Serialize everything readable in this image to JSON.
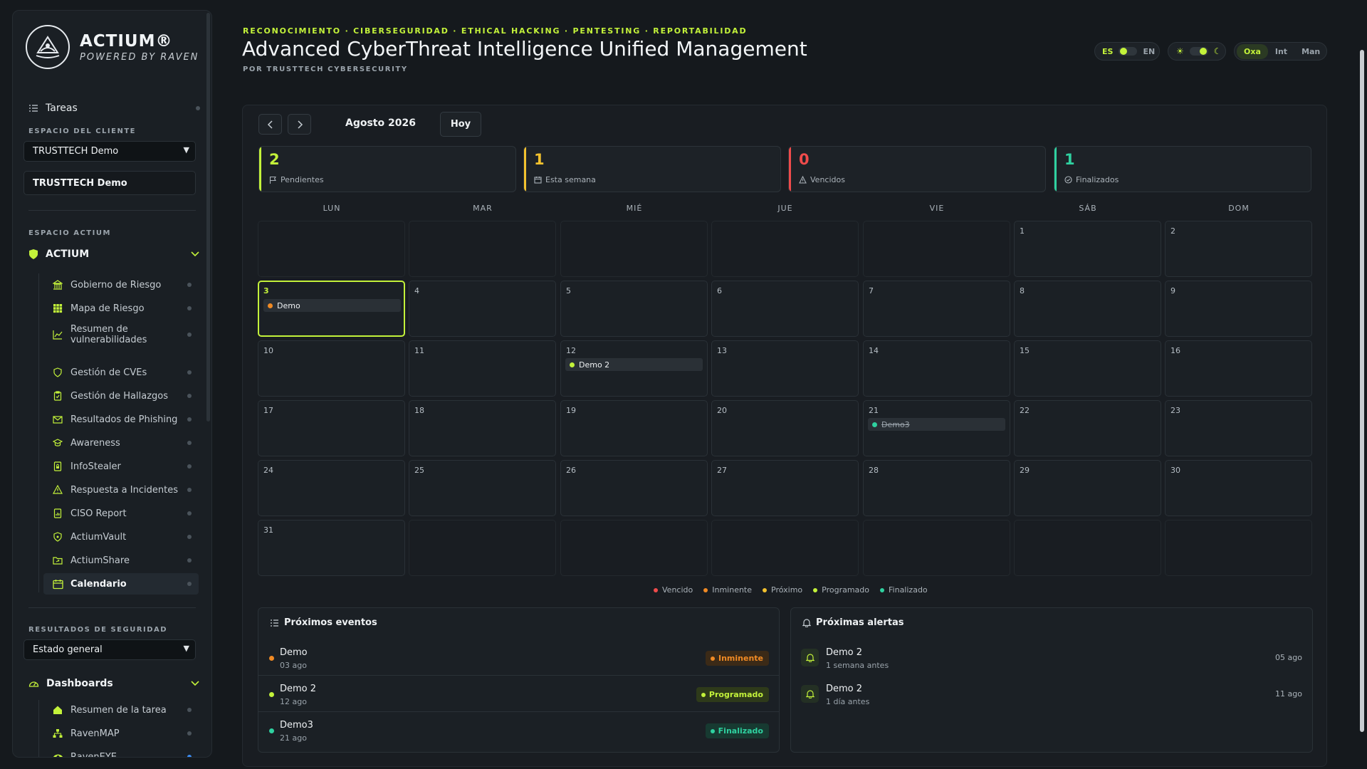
{
  "brand": {
    "name": "ACTIUM®",
    "tagline": "POWERED BY RAVEN"
  },
  "sidebar": {
    "tasks_label": "Tareas",
    "client_section": "ESPACIO DEL CLIENTE",
    "client_select": "TRUSTTECH Demo",
    "client_name": "TRUSTTECH Demo",
    "actium_section": "ESPACIO ACTIUM",
    "actium_group": "ACTIUM",
    "items": [
      {
        "label": "Gobierno de Riesgo",
        "icon": "bank-icon"
      },
      {
        "label": "Mapa de Riesgo",
        "icon": "grid-icon"
      },
      {
        "label": "Resumen de vulnerabilidades",
        "icon": "chart-line-icon"
      },
      {
        "label": "Gestión de CVEs",
        "icon": "shield-icon"
      },
      {
        "label": "Gestión de Hallazgos",
        "icon": "clipboard-icon"
      },
      {
        "label": "Resultados de Phishing",
        "icon": "mail-icon"
      },
      {
        "label": "Awareness",
        "icon": "graduation-cap-icon"
      },
      {
        "label": "InfoStealer",
        "icon": "file-lock-icon"
      },
      {
        "label": "Respuesta a Incidentes",
        "icon": "warning-icon"
      },
      {
        "label": "CISO Report",
        "icon": "report-icon"
      },
      {
        "label": "ActiumVault",
        "icon": "vault-shield-icon"
      },
      {
        "label": "ActiumShare",
        "icon": "folder-share-icon"
      },
      {
        "label": "Calendario",
        "icon": "calendar-icon"
      }
    ],
    "security_section": "RESULTADOS DE SEGURIDAD",
    "security_select": "Estado general",
    "dashboards_group": "Dashboards",
    "dash_items": [
      {
        "label": "Resumen de la tarea",
        "icon": "home-icon"
      },
      {
        "label": "RavenMAP",
        "icon": "sitemap-icon"
      },
      {
        "label": "RavenEYE",
        "icon": "eye-icon"
      }
    ]
  },
  "header": {
    "tags": "RECONOCIMIENTO · CIBERSEGURIDAD · ETHICAL HACKING · PENTESTING · REPORTABILIDAD",
    "title": "Advanced CyberThreat Intelligence Unified Management",
    "subtitle": "POR TRUSTTECH CYBERSECURITY",
    "lang_es": "ES",
    "lang_en": "EN",
    "theme_sun": "☀",
    "theme_moon": "☾",
    "modes": [
      "Oxa",
      "Int",
      "Man"
    ],
    "active_mode": "Oxa"
  },
  "calendar": {
    "month": "Agosto 2026",
    "today_btn": "Hoy",
    "stats": [
      {
        "value": "2",
        "label": "Pendientes",
        "color": "#c3f23a",
        "icon": "flag-icon"
      },
      {
        "value": "1",
        "label": "Esta semana",
        "color": "#f2c12e",
        "icon": "calendar-small-icon"
      },
      {
        "value": "0",
        "label": "Vencidos",
        "color": "#ef4b4b",
        "icon": "warning-small-icon"
      },
      {
        "value": "1",
        "label": "Finalizados",
        "color": "#2fd1a0",
        "icon": "check-circle-icon"
      }
    ],
    "weekdays": [
      "LUN",
      "MAR",
      "MIÉ",
      "JUE",
      "VIE",
      "SÁB",
      "DOM"
    ],
    "days": [
      "1",
      "2",
      "3",
      "4",
      "5",
      "6",
      "7",
      "8",
      "9",
      "10",
      "11",
      "12",
      "13",
      "14",
      "15",
      "16",
      "17",
      "18",
      "19",
      "20",
      "21",
      "22",
      "23",
      "24",
      "25",
      "26",
      "27",
      "28",
      "29",
      "30",
      "31"
    ],
    "events": {
      "ev3": {
        "label": "Demo",
        "color": "#f08a24"
      },
      "ev12": {
        "label": "Demo 2",
        "color": "#c3f23a"
      },
      "ev21": {
        "label": "Demo3",
        "color": "#2fd1a0"
      }
    },
    "legend": [
      {
        "label": "Vencido",
        "color": "#ef4b4b"
      },
      {
        "label": "Inminente",
        "color": "#f08a24"
      },
      {
        "label": "Próximo",
        "color": "#f2c12e"
      },
      {
        "label": "Programado",
        "color": "#c3f23a"
      },
      {
        "label": "Finalizado",
        "color": "#2fd1a0"
      }
    ]
  },
  "upcoming": {
    "title": "Próximos eventos",
    "rows": [
      {
        "name": "Demo",
        "date": "03 ago",
        "status": "Inminente",
        "color": "#f08a24"
      },
      {
        "name": "Demo 2",
        "date": "12 ago",
        "status": "Programado",
        "color": "#c3f23a"
      },
      {
        "name": "Demo3",
        "date": "21 ago",
        "status": "Finalizado",
        "color": "#2fd1a0"
      }
    ]
  },
  "alerts": {
    "title": "Próximas alertas",
    "rows": [
      {
        "name": "Demo 2",
        "when": "1 semana antes",
        "date": "05 ago"
      },
      {
        "name": "Demo 2",
        "when": "1 día antes",
        "date": "11 ago"
      }
    ]
  }
}
